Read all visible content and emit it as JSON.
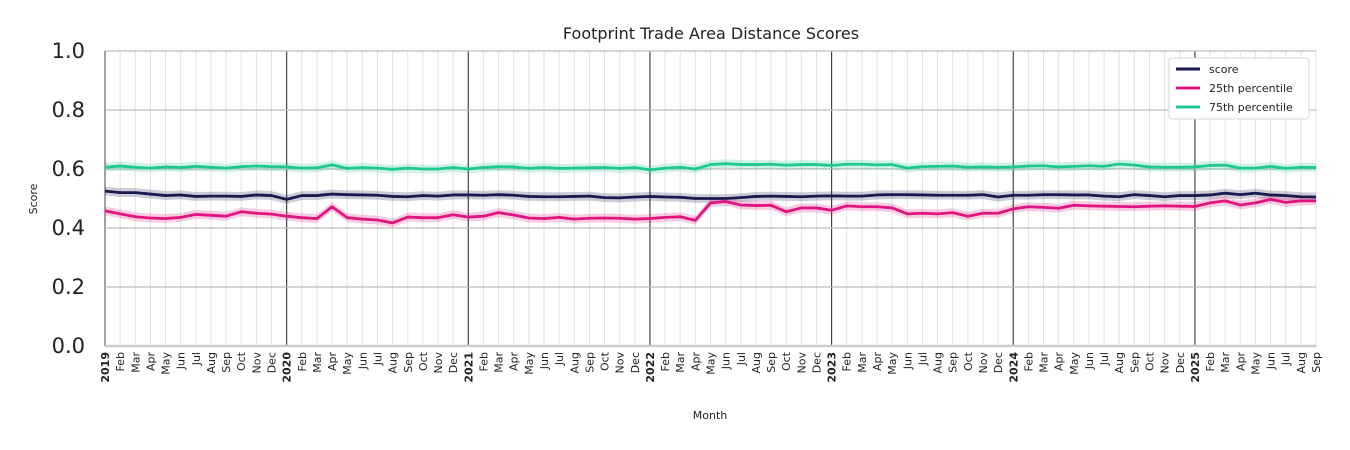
{
  "chart_data": {
    "type": "line",
    "title": "Footprint Trade Area Distance Scores",
    "xlabel": "Month",
    "ylabel": "Score",
    "ylim": [
      0,
      1
    ],
    "yticks": [
      "0.0",
      "0.2",
      "0.4",
      "0.6",
      "0.8",
      "1.0"
    ],
    "grid": true,
    "legend_position": "top-right",
    "band_halfwidth": 0.015,
    "x_start": "2019-01",
    "x_end": "2025-09",
    "month_labels": [
      "Jan",
      "Feb",
      "Mar",
      "Apr",
      "May",
      "Jun",
      "Jul",
      "Aug",
      "Sep",
      "Oct",
      "Nov",
      "Dec"
    ],
    "series": [
      {
        "name": "score",
        "color": "#1b1a4f",
        "values": [
          0.525,
          0.52,
          0.52,
          0.515,
          0.51,
          0.512,
          0.507,
          0.508,
          0.508,
          0.507,
          0.512,
          0.51,
          0.497,
          0.51,
          0.51,
          0.515,
          0.513,
          0.512,
          0.511,
          0.507,
          0.506,
          0.51,
          0.508,
          0.512,
          0.512,
          0.511,
          0.513,
          0.511,
          0.507,
          0.506,
          0.506,
          0.507,
          0.508,
          0.503,
          0.502,
          0.505,
          0.507,
          0.505,
          0.504,
          0.5,
          0.5,
          0.5,
          0.503,
          0.507,
          0.508,
          0.507,
          0.506,
          0.508,
          0.509,
          0.508,
          0.508,
          0.512,
          0.513,
          0.513,
          0.512,
          0.511,
          0.511,
          0.511,
          0.513,
          0.505,
          0.511,
          0.511,
          0.513,
          0.513,
          0.512,
          0.512,
          0.508,
          0.506,
          0.513,
          0.51,
          0.506,
          0.51,
          0.51,
          0.512,
          0.518,
          0.513,
          0.518,
          0.512,
          0.51,
          0.506,
          0.505
        ]
      },
      {
        "name": "25th percentile",
        "color": "#e0157f",
        "values": [
          0.458,
          0.448,
          0.438,
          0.434,
          0.432,
          0.436,
          0.446,
          0.443,
          0.44,
          0.455,
          0.45,
          0.447,
          0.44,
          0.435,
          0.432,
          0.472,
          0.435,
          0.43,
          0.427,
          0.417,
          0.437,
          0.435,
          0.435,
          0.445,
          0.437,
          0.44,
          0.452,
          0.444,
          0.434,
          0.432,
          0.436,
          0.43,
          0.433,
          0.434,
          0.433,
          0.43,
          0.432,
          0.436,
          0.438,
          0.426,
          0.485,
          0.49,
          0.478,
          0.476,
          0.477,
          0.455,
          0.468,
          0.468,
          0.46,
          0.475,
          0.472,
          0.472,
          0.468,
          0.448,
          0.45,
          0.448,
          0.452,
          0.44,
          0.45,
          0.45,
          0.465,
          0.472,
          0.47,
          0.467,
          0.477,
          0.475,
          0.474,
          0.473,
          0.472,
          0.474,
          0.475,
          0.474,
          0.473,
          0.485,
          0.492,
          0.478,
          0.485,
          0.497,
          0.487,
          0.492,
          0.492
        ]
      },
      {
        "name": "75th percentile",
        "color": "#1fc98e",
        "values": [
          0.606,
          0.61,
          0.606,
          0.603,
          0.607,
          0.605,
          0.609,
          0.606,
          0.603,
          0.608,
          0.61,
          0.608,
          0.607,
          0.603,
          0.604,
          0.614,
          0.602,
          0.605,
          0.603,
          0.599,
          0.603,
          0.6,
          0.6,
          0.605,
          0.6,
          0.605,
          0.608,
          0.607,
          0.602,
          0.605,
          0.602,
          0.603,
          0.604,
          0.605,
          0.602,
          0.605,
          0.597,
          0.603,
          0.606,
          0.6,
          0.615,
          0.618,
          0.615,
          0.615,
          0.616,
          0.613,
          0.615,
          0.615,
          0.612,
          0.616,
          0.616,
          0.614,
          0.615,
          0.603,
          0.608,
          0.609,
          0.61,
          0.606,
          0.607,
          0.606,
          0.607,
          0.61,
          0.611,
          0.607,
          0.609,
          0.611,
          0.609,
          0.617,
          0.613,
          0.607,
          0.606,
          0.606,
          0.607,
          0.612,
          0.613,
          0.603,
          0.603,
          0.609,
          0.602,
          0.606,
          0.605
        ]
      }
    ]
  }
}
